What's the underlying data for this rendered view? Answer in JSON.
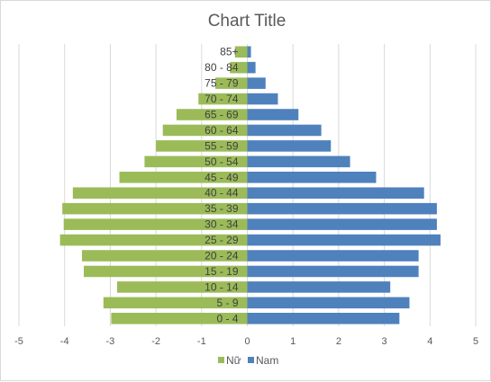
{
  "chart_data": {
    "type": "bar",
    "orientation": "horizontal",
    "title": "Chart Title",
    "categories": [
      "0 - 4",
      "5 - 9",
      "10 - 14",
      "15 - 19",
      "20 - 24",
      "25 - 29",
      "30 - 34",
      "35 - 39",
      "40 - 44",
      "45 - 49",
      "50 - 54",
      "55 - 59",
      "60 - 64",
      "65 - 69",
      "70 - 74",
      "75 - 79",
      "80 - 84",
      "85+"
    ],
    "series": [
      {
        "name": "Nữ",
        "color": "#9bbb59",
        "values": [
          -2.98,
          -3.15,
          -2.85,
          -3.58,
          -3.62,
          -4.1,
          -4.02,
          -4.05,
          -3.82,
          -2.8,
          -2.25,
          -2.0,
          -1.85,
          -1.55,
          -1.07,
          -0.7,
          -0.38,
          -0.27
        ]
      },
      {
        "name": "Nam",
        "color": "#4f81bd",
        "values": [
          3.33,
          3.55,
          3.13,
          3.75,
          3.75,
          4.23,
          4.15,
          4.15,
          3.87,
          2.82,
          2.25,
          1.83,
          1.62,
          1.12,
          0.67,
          0.4,
          0.18,
          0.08
        ]
      }
    ],
    "xlim": [
      -5,
      5
    ],
    "xticks": [
      -5,
      -4,
      -3,
      -2,
      -1,
      0,
      1,
      2,
      3,
      4,
      5
    ],
    "grid": true,
    "legend": "bottom"
  }
}
